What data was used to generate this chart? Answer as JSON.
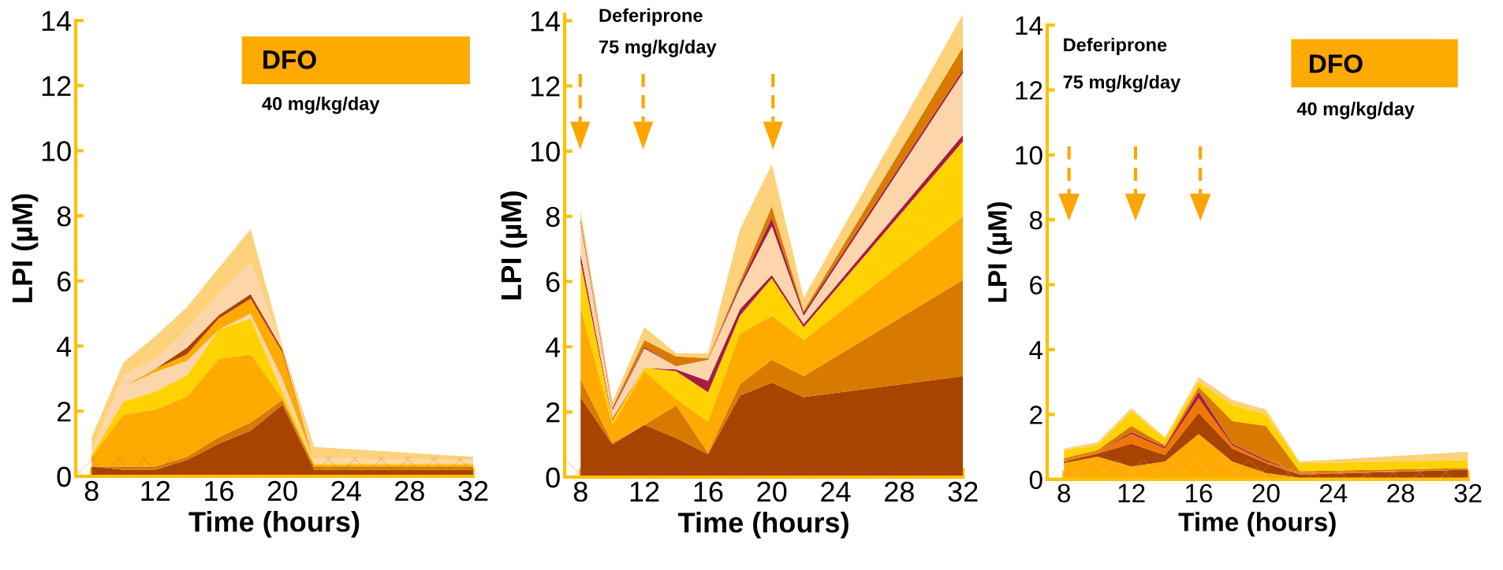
{
  "chart_data": [
    {
      "type": "area",
      "stacked": true,
      "xlabel": "Time (hours)",
      "ylabel": "LPI (µM)",
      "x": [
        8,
        10,
        12,
        14,
        16,
        18,
        20,
        22,
        32
      ],
      "xlim": [
        7,
        32
      ],
      "ylim": [
        0,
        14
      ],
      "xticks": [
        8,
        12,
        16,
        20,
        24,
        28,
        32
      ],
      "yticks": [
        0,
        2,
        4,
        6,
        8,
        10,
        12,
        14
      ],
      "grid": false,
      "legend": false,
      "annotations": [
        "DFO",
        "40 mg/kg/day"
      ],
      "bands": [
        {
          "axis": "y",
          "from": 0,
          "to": 0.6,
          "color": "#b34a10"
        }
      ],
      "series": [
        {
          "color": "#a84300",
          "values": [
            0.3,
            0.2,
            0.2,
            0.5,
            1.0,
            1.4,
            2.2,
            0.2,
            0.2
          ]
        },
        {
          "color": "#d87a00",
          "values": [
            0,
            0.1,
            0.1,
            0.1,
            0.2,
            0.25,
            0.15,
            0.1,
            0.1
          ]
        },
        {
          "color": "#ffaa00",
          "values": [
            0.3,
            1.6,
            1.75,
            1.85,
            2.4,
            2.1,
            0.05,
            0.05,
            0.05
          ]
        },
        {
          "color": "#ffd200",
          "values": [
            0.05,
            0.4,
            0.55,
            0.65,
            0.9,
            1.1,
            0.2,
            0.05,
            0.05
          ]
        },
        {
          "color": "#fdd5aa",
          "values": [
            0.05,
            0.45,
            0.6,
            0.45,
            0,
            0.15,
            0.4,
            0.05,
            0.05
          ]
        },
        {
          "color": "#ffaa00",
          "values": [
            0,
            0,
            0.1,
            0.2,
            0.35,
            0.45,
            0.8,
            0,
            0
          ]
        },
        {
          "color": "#a84300",
          "values": [
            0,
            0,
            0,
            0.2,
            0.1,
            0.15,
            0.1,
            0,
            0
          ]
        },
        {
          "color": "#fdd5aa",
          "values": [
            0.05,
            0.35,
            0.3,
            0.55,
            0.65,
            0.95,
            0.05,
            0.1,
            0.05
          ]
        },
        {
          "color": "#fdd27a",
          "values": [
            0.45,
            0.4,
            0.7,
            0.7,
            0.8,
            1.05,
            0.05,
            0.35,
            0.1
          ]
        }
      ]
    },
    {
      "type": "area",
      "stacked": true,
      "xlabel": "Time (hours)",
      "ylabel": "LPI (µM)",
      "x": [
        8,
        10,
        12,
        14,
        16,
        18,
        20,
        22,
        32
      ],
      "xlim": [
        7,
        32
      ],
      "ylim": [
        0,
        14.2
      ],
      "xticks": [
        8,
        12,
        16,
        20,
        24,
        28,
        32
      ],
      "yticks": [
        0,
        2,
        4,
        6,
        8,
        10,
        12,
        14
      ],
      "grid": false,
      "legend": false,
      "annotations": [
        "Deferiprone",
        "75 mg/kg/day"
      ],
      "bands": [
        {
          "axis": "y",
          "from": 0,
          "to": 0.6,
          "color": "#9b4a50"
        }
      ],
      "series": [
        {
          "color": "#a84300",
          "values": [
            2.45,
            1.0,
            1.6,
            1.2,
            0.7,
            2.5,
            2.9,
            2.45,
            3.1
          ]
        },
        {
          "color": "#d87a00",
          "values": [
            0.55,
            0.05,
            0,
            1.0,
            0.05,
            0.35,
            0.7,
            0.65,
            2.95
          ]
        },
        {
          "color": "#ffaa00",
          "values": [
            2.2,
            0.55,
            1.65,
            0.2,
            0.95,
            1.55,
            1.35,
            1.1,
            1.95
          ]
        },
        {
          "color": "#ffd200",
          "values": [
            1.4,
            0.15,
            0.1,
            0.85,
            0.9,
            0.55,
            1.15,
            0.4,
            2.3
          ]
        },
        {
          "color": "#a51c45",
          "values": [
            0.25,
            0.05,
            0,
            0.05,
            0.35,
            0.2,
            0.1,
            0.1,
            0.2
          ]
        },
        {
          "color": "#fdd5aa",
          "values": [
            0.95,
            0.25,
            0.6,
            0.1,
            0.65,
            0.65,
            1.5,
            0.25,
            1.9
          ]
        },
        {
          "color": "#a51c45",
          "values": [
            0.1,
            0.05,
            0.05,
            0,
            0,
            0.1,
            0.25,
            0.1,
            0.1
          ]
        },
        {
          "color": "#d87a00",
          "values": [
            0.05,
            0.05,
            0.2,
            0.3,
            0.05,
            0.1,
            0.35,
            0.05,
            0.7
          ]
        },
        {
          "color": "#fdd27a",
          "values": [
            0.25,
            0.15,
            0.4,
            0.1,
            0.15,
            1.6,
            1.3,
            0.4,
            1.0
          ]
        }
      ]
    },
    {
      "type": "area",
      "stacked": true,
      "xlabel": "Time (hours)",
      "ylabel": "LPI (µM)",
      "x": [
        8,
        10,
        12,
        14,
        16,
        18,
        20,
        22,
        32
      ],
      "xlim": [
        7,
        32
      ],
      "ylim": [
        0,
        14
      ],
      "xticks": [
        8,
        12,
        16,
        20,
        24,
        28,
        32
      ],
      "yticks": [
        0,
        2,
        4,
        6,
        8,
        10,
        12,
        14
      ],
      "grid": false,
      "legend": false,
      "annotations": [
        "Deferiprone",
        "75 mg/kg/day",
        "DFO",
        "40 mg/kg/day"
      ],
      "bands": [
        {
          "axis": "y",
          "from": 0,
          "to": 0.6,
          "color": "#fdd8a0"
        }
      ],
      "series": [
        {
          "color": "#ffaa00",
          "values": [
            0.5,
            0.7,
            0.4,
            0.55,
            1.4,
            0.55,
            0.2,
            0.05,
            0.05
          ]
        },
        {
          "color": "#a84300",
          "values": [
            0.05,
            0.1,
            0.7,
            0.2,
            0.65,
            0.4,
            0.3,
            0.1,
            0.25
          ]
        },
        {
          "color": "#f07800",
          "values": [
            0.05,
            0.05,
            0.3,
            0.2,
            0.45,
            0.1,
            0.05,
            0.05,
            0
          ]
        },
        {
          "color": "#a51c45",
          "values": [
            0,
            0,
            0.05,
            0.05,
            0.2,
            0.05,
            0.05,
            0,
            0
          ]
        },
        {
          "color": "#d87a00",
          "values": [
            0.05,
            0.05,
            0.2,
            0.05,
            0.15,
            0.7,
            1.05,
            0.05,
            0.05
          ]
        },
        {
          "color": "#ffd200",
          "values": [
            0.25,
            0.15,
            0.45,
            0.2,
            0.15,
            0.5,
            0.35,
            0.25,
            0.25
          ]
        },
        {
          "color": "#fdd27a",
          "values": [
            0.05,
            0.1,
            0.1,
            0.05,
            0.15,
            0.15,
            0.15,
            0.05,
            0.25
          ]
        }
      ]
    }
  ]
}
